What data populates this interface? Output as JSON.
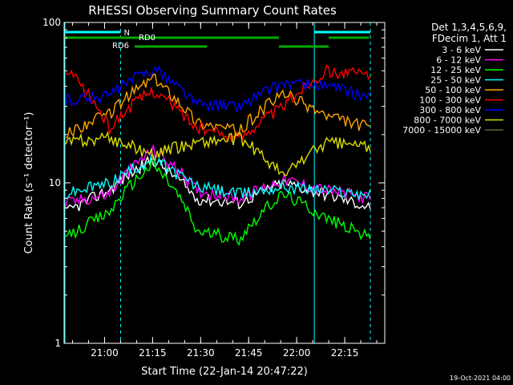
{
  "chart_data": {
    "type": "line",
    "title": "RHESSI Observing Summary Count Rates",
    "xlabel": "Start Time (22-Jan-14 20:47:22)",
    "ylabel": "Count Rate (s⁻¹ detector⁻¹)",
    "y_scale": "log",
    "ylim": [
      1,
      100
    ],
    "xlim": [
      "20:47:22",
      "22:27:30"
    ],
    "x_ticks": [
      "21:00",
      "21:15",
      "21:30",
      "21:45",
      "22:00",
      "22:15"
    ],
    "y_ticks": [
      "1",
      "10",
      "100"
    ],
    "legend_header": [
      "Det 1,3,4,5,6,9,",
      "FDecim 1, Att 1"
    ],
    "legend_placement": "right",
    "timestamp": "19-Oct-2021 04:00",
    "annotations": {
      "night_label": "N",
      "rd_labels": [
        "RD6",
        "RD0"
      ]
    },
    "segments": [
      {
        "name": "eclipse",
        "start": "20:47:22",
        "end": "21:05:00"
      },
      {
        "name": "sun",
        "start": "21:05:00",
        "end": "22:05:30"
      },
      {
        "name": "eclipse",
        "start": "22:05:30",
        "end": "22:23:00"
      }
    ],
    "series": [
      {
        "name": "3 - 6 keV",
        "color": "#ffffff",
        "profile": [
          6.5,
          9,
          14,
          8,
          7.5,
          10,
          8.5,
          7
        ]
      },
      {
        "name": "6 - 12 keV",
        "color": "#ff00ff",
        "profile": [
          7.5,
          8.5,
          16,
          9,
          8,
          10.5,
          9,
          8
        ]
      },
      {
        "name": "12 - 25 keV",
        "color": "#00ff00",
        "profile": [
          4.5,
          6.5,
          13,
          5,
          4.5,
          8.5,
          6,
          4.5
        ]
      },
      {
        "name": "25 - 50 keV",
        "color": "#00ffff",
        "profile": [
          8.5,
          10,
          14,
          9.5,
          8.5,
          9.5,
          9,
          8.5
        ]
      },
      {
        "name": "50 - 100 keV",
        "color": "#ffa500",
        "profile": [
          20,
          27,
          45,
          24,
          21,
          36,
          26,
          22
        ]
      },
      {
        "name": "100 - 300 keV",
        "color": "#ff0000",
        "profile": [
          50,
          22,
          38,
          22,
          19,
          30,
          50,
          47
        ]
      },
      {
        "name": "300 - 800 keV",
        "color": "#0000ff",
        "profile": [
          33,
          35,
          52,
          31,
          30,
          42,
          40,
          34
        ]
      },
      {
        "name": "800 - 7000 keV",
        "color": "#dddd00",
        "profile": [
          18,
          19,
          15,
          18,
          19,
          11,
          18,
          17
        ]
      },
      {
        "name": "7000 - 15000 keV",
        "color": "#556b2f",
        "profile": []
      }
    ]
  }
}
